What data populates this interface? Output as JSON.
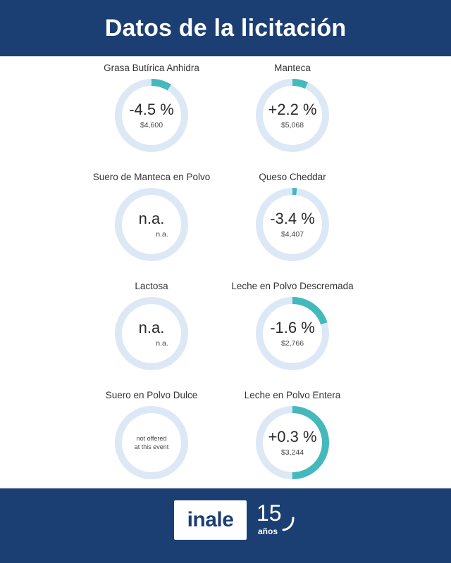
{
  "header": {
    "title": "Datos de la licitación"
  },
  "colors": {
    "navy": "#1c3f73",
    "accent": "#44b9bb",
    "track": "#dce8f5"
  },
  "products": [
    {
      "name": "Grasa Butírica Anhidra",
      "change": "-4.5 %",
      "price": "$4,600",
      "share": 0.09
    },
    {
      "name": "Manteca",
      "change": "+2.2 %",
      "price": "$5,068",
      "share": 0.07
    },
    {
      "name": "Suero de Manteca en Polvo",
      "change": "n.a.",
      "price": "n.a.",
      "share": 0
    },
    {
      "name": "Queso Cheddar",
      "change": "-3.4 %",
      "price": "$4,407",
      "share": 0.02
    },
    {
      "name": "Lactosa",
      "change": "n.a.",
      "price": "n.a.",
      "share": 0
    },
    {
      "name": "Leche en Polvo Descremada",
      "change": "-1.6 %",
      "price": "$2,766",
      "share": 0.2
    },
    {
      "name": "Suero en Polvo Dulce",
      "note": "not offered\nat this event",
      "share": 0
    },
    {
      "name": "Leche en Polvo Entera",
      "change": "+0.3 %",
      "price": "$3,244",
      "share": 0.5
    }
  ],
  "footer": {
    "logo": "inale",
    "years_number": "15",
    "years_label": "años"
  }
}
